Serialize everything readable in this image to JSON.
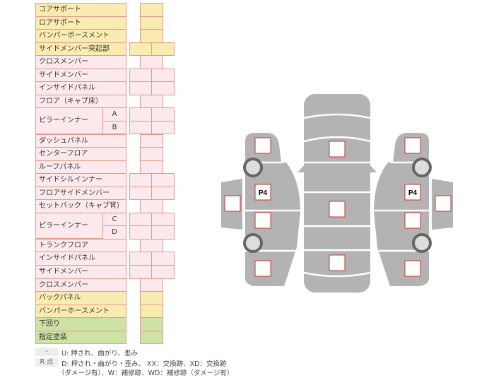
{
  "rows": [
    {
      "label": "コアサポート",
      "color": "y",
      "cols": 1
    },
    {
      "label": "ロアサポート",
      "color": "y",
      "cols": 1
    },
    {
      "label": "バンパーボースメント",
      "color": "y",
      "cols": 1
    },
    {
      "label": "サイドメンバー突起部",
      "color": "y",
      "cols": 2
    },
    {
      "label": "クロスメンバー",
      "color": "p",
      "cols": 1
    },
    {
      "label": "サイドメンバー",
      "color": "p",
      "cols": 2
    },
    {
      "label": "インサイドパネル",
      "color": "p",
      "cols": 2
    },
    {
      "label": "フロア（キャブ床）",
      "color": "p",
      "cols": 1
    },
    {
      "label": "ピラーインナー",
      "color": "p",
      "cols": 2,
      "sub": "A",
      "group_start": true
    },
    {
      "label": "",
      "color": "p",
      "cols": 2,
      "sub": "B"
    },
    {
      "label": "ダッシュパネル",
      "color": "p",
      "cols": 1
    },
    {
      "label": "センターフロア",
      "color": "p",
      "cols": 1
    },
    {
      "label": "ルーフパネル",
      "color": "p",
      "cols": 1
    },
    {
      "label": "サイドシルインナー",
      "color": "p",
      "cols": 2
    },
    {
      "label": "フロアサイドメンバー",
      "color": "p",
      "cols": 2
    },
    {
      "label": "セットバック（キャブ背）",
      "color": "p",
      "cols": 1
    },
    {
      "label": "ピラーインナー",
      "color": "p",
      "cols": 2,
      "sub": "C",
      "group_start": true
    },
    {
      "label": "",
      "color": "p",
      "cols": 2,
      "sub": "D"
    },
    {
      "label": "トランクフロア",
      "color": "p",
      "cols": 1
    },
    {
      "label": "インサイドパネル",
      "color": "p",
      "cols": 2
    },
    {
      "label": "サイドメンバー",
      "color": "p",
      "cols": 2
    },
    {
      "label": "クロスメンバー",
      "color": "p",
      "cols": 1
    },
    {
      "label": "バックパネル",
      "color": "y",
      "cols": 1
    },
    {
      "label": "バンパーホースメント",
      "color": "y",
      "cols": 1
    },
    {
      "label": "下回り",
      "color": "g",
      "cols": 1
    },
    {
      "label": "指定塗装",
      "color": "g",
      "cols": 1
    }
  ],
  "legend": {
    "key1": "-",
    "text1": "U: 押され、曲がり、歪み",
    "key2": "R 点",
    "text2": "D: 押され・曲がり・歪み、 XX：交換跡、XD：交換跡",
    "text3": "（ダメージ有）、W：補修跡、WD：補修跡（ダメージ有）"
  },
  "diagram": {
    "left_label": "P4",
    "right_label": "P4",
    "body_color": "#b3b3b3",
    "box_border": "#c0392b"
  }
}
